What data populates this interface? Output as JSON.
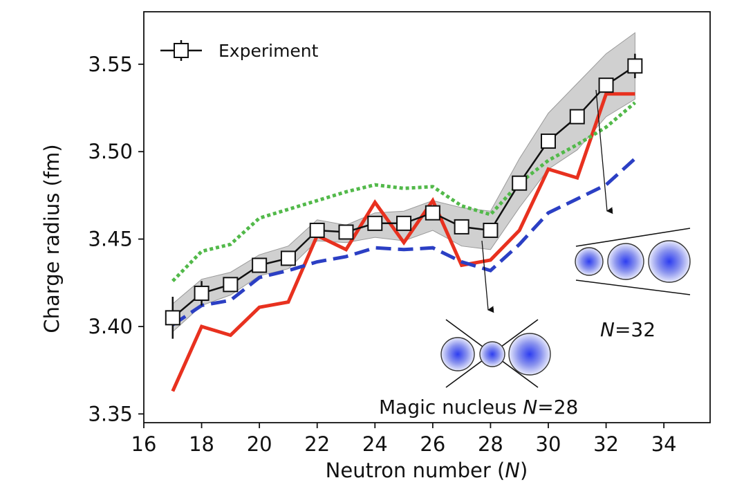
{
  "chart_data": {
    "type": "line",
    "xlabel": "Neutron number (N)",
    "xlabel_prefix": "Neutron number (",
    "xlabel_var": "N",
    "xlabel_suffix": ")",
    "ylabel": "Charge radius (fm)",
    "xlim": [
      16,
      35.6
    ],
    "ylim": [
      3.345,
      3.58
    ],
    "xticks": [
      16,
      18,
      20,
      22,
      24,
      26,
      28,
      30,
      32,
      34
    ],
    "yticks": [
      3.35,
      3.4,
      3.45,
      3.5,
      3.55
    ],
    "ytick_labels": [
      "3.35",
      "3.40",
      "3.45",
      "3.50",
      "3.55"
    ],
    "legend": {
      "position": "top-left",
      "entries": [
        "Experiment"
      ]
    },
    "experiment": {
      "name": "Experiment",
      "x": [
        17,
        18,
        19,
        20,
        21,
        22,
        23,
        24,
        25,
        26,
        27,
        28,
        29,
        30,
        31,
        32,
        33
      ],
      "y": [
        3.405,
        3.419,
        3.424,
        3.435,
        3.439,
        3.455,
        3.454,
        3.459,
        3.459,
        3.465,
        3.457,
        3.455,
        3.482,
        3.506,
        3.52,
        3.538,
        3.549
      ],
      "err": [
        0.012,
        0.007,
        0.004,
        0.003,
        0.003,
        0.003,
        0.003,
        0.003,
        0.003,
        0.003,
        0.003,
        0.003,
        0.003,
        0.003,
        0.003,
        0.003,
        0.007
      ],
      "band_upper": [
        3.413,
        3.427,
        3.431,
        3.441,
        3.446,
        3.461,
        3.458,
        3.465,
        3.466,
        3.472,
        3.468,
        3.466,
        3.496,
        3.522,
        3.539,
        3.556,
        3.568
      ],
      "band_lower": [
        3.397,
        3.412,
        3.418,
        3.429,
        3.433,
        3.449,
        3.448,
        3.451,
        3.449,
        3.455,
        3.446,
        3.444,
        3.468,
        3.49,
        3.501,
        3.52,
        3.53
      ]
    },
    "series": [
      {
        "style": "solid",
        "color": "#e8311f",
        "x": [
          17,
          18,
          19,
          20,
          21,
          22,
          23,
          24,
          25,
          26,
          27,
          28,
          29,
          30,
          31,
          32,
          33
        ],
        "y": [
          3.363,
          3.4,
          3.395,
          3.411,
          3.414,
          3.452,
          3.444,
          3.471,
          3.448,
          3.472,
          3.435,
          3.438,
          3.455,
          3.49,
          3.485,
          3.533,
          3.533
        ]
      },
      {
        "style": "dashed",
        "color": "#2b3fc4",
        "x": [
          17,
          18,
          19,
          20,
          21,
          22,
          23,
          24,
          25,
          26,
          27,
          28,
          29,
          30,
          31,
          32,
          33
        ],
        "y": [
          3.401,
          3.412,
          3.415,
          3.428,
          3.432,
          3.437,
          3.44,
          3.445,
          3.444,
          3.445,
          3.437,
          3.432,
          3.447,
          3.465,
          3.473,
          3.481,
          3.496
        ]
      },
      {
        "style": "dotted",
        "color": "#52b94a",
        "x": [
          17,
          18,
          19,
          20,
          21,
          22,
          23,
          24,
          25,
          26,
          27,
          28,
          29,
          30,
          31,
          32,
          33
        ],
        "y": [
          3.426,
          3.443,
          3.447,
          3.462,
          3.467,
          3.472,
          3.477,
          3.481,
          3.479,
          3.48,
          3.469,
          3.464,
          3.482,
          3.495,
          3.504,
          3.514,
          3.528
        ]
      }
    ],
    "annotations": {
      "magic_text": "Magic nucleus ",
      "magic_var": "N",
      "magic_value": "=28",
      "n32_var": "N",
      "n32_value": "=32"
    }
  }
}
